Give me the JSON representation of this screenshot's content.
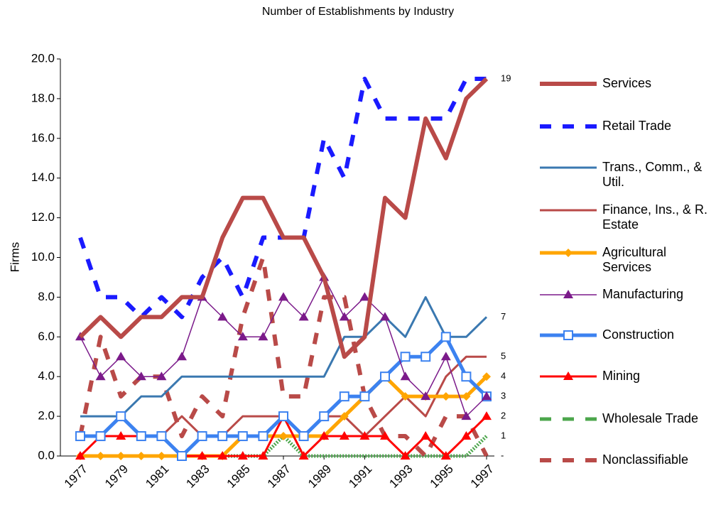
{
  "chart_data": {
    "type": "line",
    "title": "Number of Establishments by Industry",
    "y_label": "Firms",
    "categories": [
      "1977",
      null,
      "1979",
      null,
      "1981",
      null,
      "1983",
      null,
      "1985",
      null,
      "1987",
      null,
      "1989",
      null,
      "1991",
      null,
      "1993",
      null,
      "1995",
      null,
      "1997"
    ],
    "ylim": [
      0,
      20
    ],
    "yticks": [
      {
        "value": 0,
        "label": "0.0"
      },
      {
        "value": 2,
        "label": "2.0"
      },
      {
        "value": 4,
        "label": "4.0"
      },
      {
        "value": 6,
        "label": "6.0"
      },
      {
        "value": 8,
        "label": "8.0"
      },
      {
        "value": 10,
        "label": "10.0"
      },
      {
        "value": 12,
        "label": "12.0"
      },
      {
        "value": 14,
        "label": "14.0"
      },
      {
        "value": 16,
        "label": "16.0"
      },
      {
        "value": 18,
        "label": "18.0"
      },
      {
        "value": 20,
        "label": "20.0"
      }
    ],
    "y2lim": [
      0,
      20
    ],
    "y2ticks": [
      {
        "value": 0,
        "label": "-"
      },
      1,
      2,
      3,
      4,
      5,
      7,
      19
    ],
    "legend": "right",
    "series": [
      {
        "name": "Services",
        "color": "#b94a48",
        "line_style": "thick",
        "marker": "none",
        "values": [
          6,
          7,
          6,
          7,
          7,
          8,
          8,
          11,
          13,
          13,
          11,
          11,
          9,
          5,
          6,
          13,
          12,
          17,
          15,
          18,
          19
        ]
      },
      {
        "name": "Retail Trade",
        "color": "#1a1aff",
        "line_style": "dashed",
        "marker": "none",
        "values": [
          11,
          8,
          8,
          7,
          8,
          7,
          9,
          10,
          8,
          11,
          11,
          11,
          16,
          14,
          19,
          17,
          17,
          17,
          17,
          19,
          19
        ]
      },
      {
        "name": "Trans., Comm., & Util.",
        "color": "#3a78b0",
        "line_style": "solid",
        "marker": "none",
        "values": [
          2,
          2,
          2,
          3,
          3,
          4,
          4,
          4,
          4,
          4,
          4,
          4,
          4,
          6,
          6,
          7,
          6,
          8,
          6,
          6,
          7
        ]
      },
      {
        "name": "Finance, Ins., & R. Estate",
        "color": "#b94a48",
        "line_style": "solid",
        "marker": "none",
        "values": [
          1,
          1,
          1,
          1,
          1,
          2,
          1,
          1,
          2,
          2,
          2,
          1,
          2,
          2,
          1,
          2,
          3,
          2,
          4,
          5,
          5
        ]
      },
      {
        "name": "Agricultural Services",
        "color": "#ffa500",
        "line_style": "medium",
        "marker": "diamond",
        "values": [
          0,
          0,
          0,
          0,
          0,
          0,
          0,
          0,
          1,
          1,
          1,
          1,
          1,
          2,
          3,
          4,
          3,
          3,
          3,
          3,
          4
        ]
      },
      {
        "name": "Manufacturing",
        "color": "#7b1a8a",
        "line_style": "thin",
        "marker": "triangle",
        "values": [
          6,
          4,
          5,
          4,
          4,
          5,
          8,
          7,
          6,
          6,
          8,
          7,
          9,
          7,
          8,
          7,
          4,
          3,
          5,
          2,
          3
        ]
      },
      {
        "name": "Construction",
        "color": "#3c82f0",
        "line_style": "medium",
        "marker": "square",
        "values": [
          1,
          1,
          2,
          1,
          1,
          0,
          1,
          1,
          1,
          1,
          2,
          1,
          2,
          3,
          3,
          4,
          5,
          5,
          6,
          4,
          3
        ]
      },
      {
        "name": "Mining",
        "color": "#ff0000",
        "line_style": "solid",
        "marker": "triangle",
        "values": [
          0,
          1,
          1,
          1,
          1,
          0,
          0,
          0,
          0,
          0,
          2,
          0,
          1,
          1,
          1,
          1,
          0,
          1,
          0,
          1,
          2
        ]
      },
      {
        "name": "Wholesale Trade",
        "color": "#4ca64c",
        "line_style": "pattern",
        "marker": "none",
        "values": [
          0,
          0,
          0,
          0,
          0,
          0,
          0,
          0,
          0,
          0,
          1,
          0,
          0,
          0,
          0,
          0,
          0,
          0,
          0,
          0,
          1
        ]
      },
      {
        "name": "Nonclassifiable",
        "color": "#b94a48",
        "line_style": "dashed",
        "marker": "none",
        "values": [
          1,
          6,
          3,
          4,
          4,
          1,
          3,
          2,
          7,
          10,
          3,
          3,
          8,
          8,
          3,
          1,
          1,
          0,
          2,
          2,
          0
        ]
      }
    ]
  }
}
